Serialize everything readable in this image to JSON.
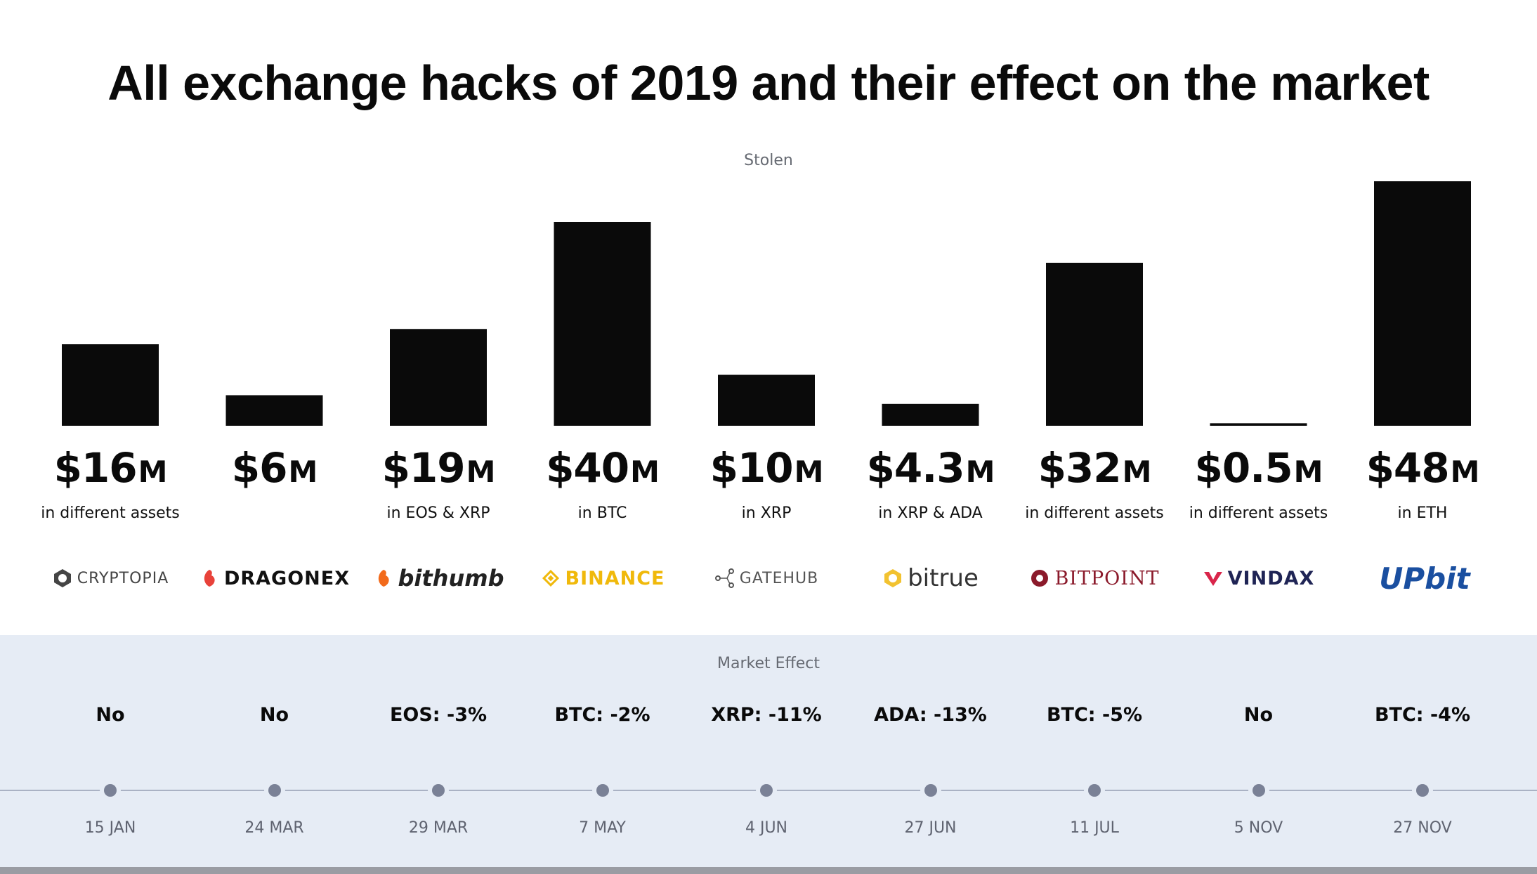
{
  "chart_data": {
    "type": "bar",
    "title": "All exchange hacks of 2019 and their effect on the market",
    "stolen_label": "Stolen",
    "market_label": "Market Effect",
    "unit": "M",
    "categories": [
      "CRYPTOPIA",
      "DRAGONEX",
      "bithumb",
      "BINANCE",
      "GATEHUB",
      "bitrue",
      "BITPOINT",
      "VINDAX",
      "UPbit"
    ],
    "values": [
      16,
      6,
      19,
      40,
      10,
      4.3,
      32,
      0.5,
      48
    ],
    "value_labels": [
      "$16",
      "$6",
      "$19",
      "$40",
      "$10",
      "$4.3",
      "$32",
      "$0.5",
      "$48"
    ],
    "assets": [
      "in different assets",
      "",
      "in EOS & XRP",
      "in BTC",
      "in XRP",
      "in XRP & ADA",
      "in different assets",
      "in different assets",
      "in ETH"
    ],
    "market_effect": [
      "No",
      "No",
      "EOS: -3%",
      "BTC: -2%",
      "XRP: -11%",
      "ADA: -13%",
      "BTC: -5%",
      "No",
      "BTC: -4%"
    ],
    "dates": [
      "15 JAN",
      "24 MAR",
      "29 MAR",
      "7 MAY",
      "4 JUN",
      "27 JUN",
      "11 JUL",
      "5 NOV",
      "27 NOV"
    ],
    "ylim": [
      0,
      48
    ],
    "bar_color": "#0a0a0a"
  },
  "logos": [
    {
      "text": "CRYPTOPIA",
      "color": "#444444",
      "icon": "hexagon-icon"
    },
    {
      "text": "DRAGONEX",
      "color": "#111111",
      "accent": "#e8423a",
      "icon": "dragon-icon"
    },
    {
      "text": "bithumb",
      "color": "#222222",
      "accent": "#f26a1b",
      "icon": "bithumb-icon"
    },
    {
      "text": "BINANCE",
      "color": "#f0b90b",
      "icon": "binance-diamond-icon"
    },
    {
      "text": "GATEHUB",
      "color": "#555555",
      "icon": "node-graph-icon"
    },
    {
      "text": "bitrue",
      "color": "#333333",
      "accent": "#f2c230",
      "icon": "bitrue-hex-icon"
    },
    {
      "text": "BITPOINT",
      "color": "#8b1a2b",
      "icon": "bitpoint-circle-icon"
    },
    {
      "text": "VINDAX",
      "color": "#1f2455",
      "accent": "#d9254a",
      "icon": "vindax-v-icon"
    },
    {
      "text": "UPbit",
      "color": "#1a4fa0",
      "icon": "upbit-icon"
    }
  ]
}
